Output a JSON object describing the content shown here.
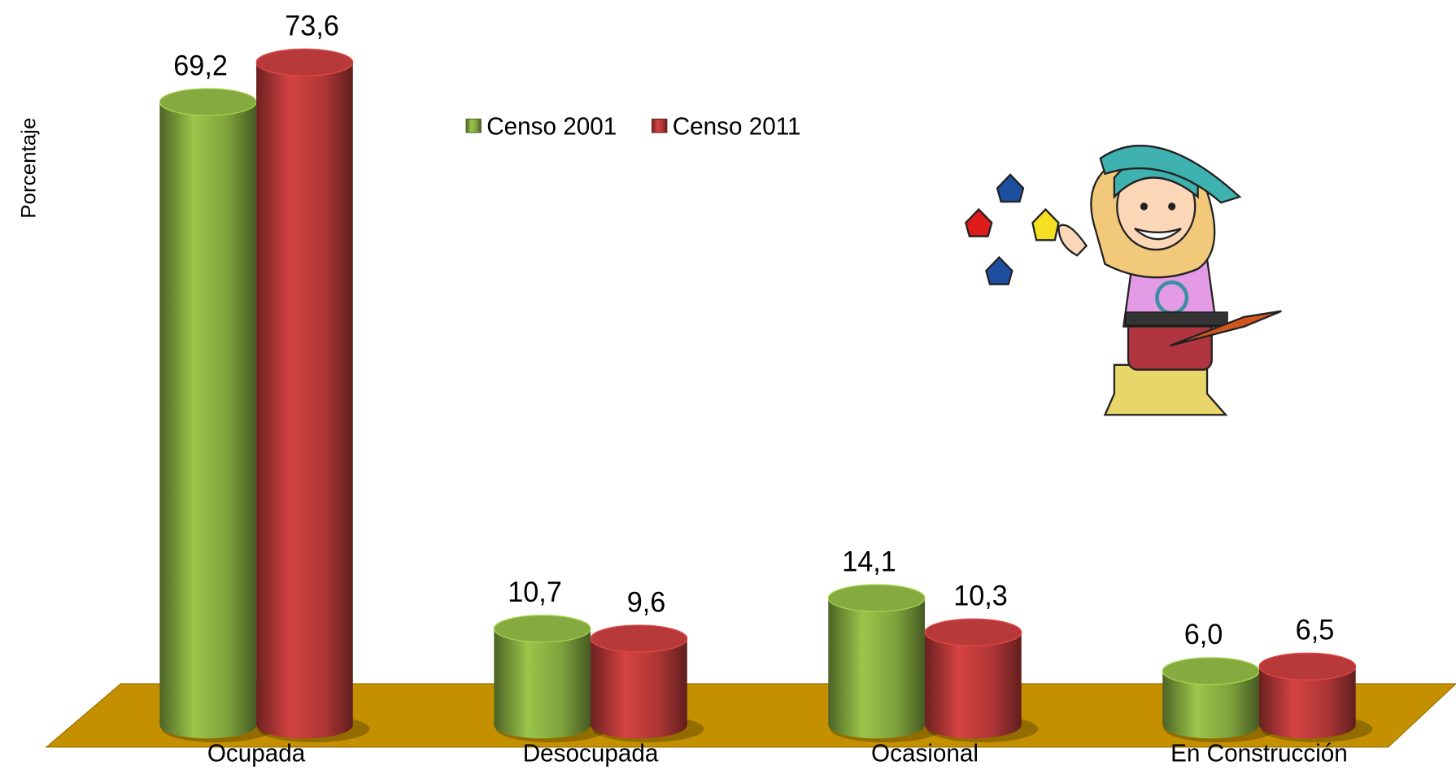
{
  "chart_data": {
    "type": "bar3d",
    "y_label": "Porcentaje",
    "categories": [
      "Ocupada",
      "Desocupada",
      "Ocasional",
      "En Construcción"
    ],
    "series": [
      {
        "name": "Censo 2001",
        "color": "#8cb443",
        "values": [
          69.2,
          10.7,
          14.1,
          6.0
        ],
        "value_labels": [
          "69,2",
          "10,7",
          "14,1",
          "6,0"
        ]
      },
      {
        "name": "Censo 2011",
        "color": "#c23c3c",
        "values": [
          73.6,
          9.6,
          10.3,
          6.5
        ],
        "value_labels": [
          "73,6",
          "9,6",
          "10,3",
          "6,5"
        ]
      }
    ]
  }
}
